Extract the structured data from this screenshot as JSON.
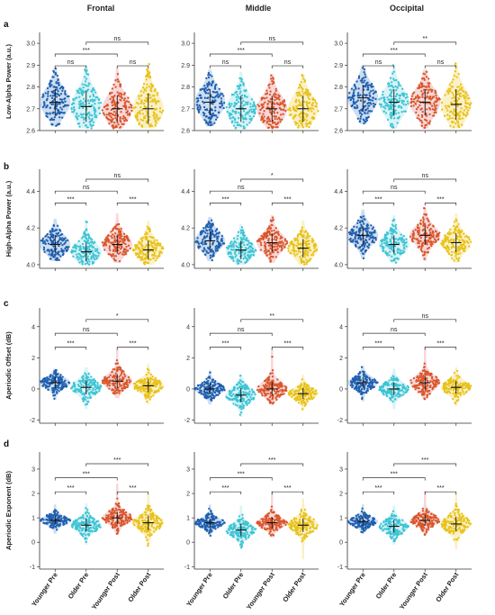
{
  "figure": {
    "col_titles": [
      "Frontal",
      "Middle",
      "Occipital"
    ],
    "categories": [
      "Younger Pre",
      "Older Pre",
      "Younger Post",
      "Older Post"
    ],
    "colors": [
      "#1f5fae",
      "#3cc4d4",
      "#d9562a",
      "#e8c21a"
    ],
    "violin_colors": [
      "#c9daf0",
      "#d6f2f5",
      "#f6d3d6",
      "#fbefc2"
    ]
  },
  "chart_data": [
    {
      "panel": "a",
      "type": "scatter",
      "ylabel": "Low-Alpha Power (a.u.)",
      "ylim": [
        2.6,
        3.05
      ],
      "yticks": [
        2.6,
        2.7,
        2.8,
        2.9,
        3.0
      ],
      "decimals": 1,
      "columns": [
        {
          "region": "Frontal",
          "stats": [
            {
              "mean": 2.73,
              "sd": 0.06,
              "lo": 2.62,
              "hi": 2.89
            },
            {
              "mean": 2.71,
              "sd": 0.07,
              "lo": 2.61,
              "hi": 2.9
            },
            {
              "mean": 2.7,
              "sd": 0.06,
              "lo": 2.61,
              "hi": 2.89
            },
            {
              "mean": 2.7,
              "sd": 0.07,
              "lo": 2.61,
              "hi": 2.91
            }
          ],
          "brackets": [
            {
              "from": 1,
              "to": 2,
              "label": "ns",
              "level": 0
            },
            {
              "from": 3,
              "to": 4,
              "label": "ns",
              "level": 0
            },
            {
              "from": 1,
              "to": 3,
              "label": "***",
              "level": 1
            },
            {
              "from": 2,
              "to": 4,
              "label": "ns",
              "level": 2
            }
          ]
        },
        {
          "region": "Middle",
          "stats": [
            {
              "mean": 2.73,
              "sd": 0.06,
              "lo": 2.62,
              "hi": 2.88
            },
            {
              "mean": 2.7,
              "sd": 0.06,
              "lo": 2.61,
              "hi": 2.87
            },
            {
              "mean": 2.7,
              "sd": 0.06,
              "lo": 2.61,
              "hi": 2.86
            },
            {
              "mean": 2.7,
              "sd": 0.06,
              "lo": 2.61,
              "hi": 2.86
            }
          ],
          "brackets": [
            {
              "from": 1,
              "to": 2,
              "label": "ns",
              "level": 0
            },
            {
              "from": 3,
              "to": 4,
              "label": "ns",
              "level": 0
            },
            {
              "from": 1,
              "to": 3,
              "label": "***",
              "level": 1
            },
            {
              "from": 2,
              "to": 4,
              "label": "ns",
              "level": 2
            }
          ]
        },
        {
          "region": "Occipital",
          "stats": [
            {
              "mean": 2.75,
              "sd": 0.06,
              "lo": 2.63,
              "hi": 2.9
            },
            {
              "mean": 2.73,
              "sd": 0.06,
              "lo": 2.61,
              "hi": 2.9
            },
            {
              "mean": 2.73,
              "sd": 0.06,
              "lo": 2.61,
              "hi": 2.88
            },
            {
              "mean": 2.72,
              "sd": 0.07,
              "lo": 2.61,
              "hi": 2.91
            }
          ],
          "brackets": [
            {
              "from": 1,
              "to": 2,
              "label": "ns",
              "level": 0
            },
            {
              "from": 3,
              "to": 4,
              "label": "ns",
              "level": 0
            },
            {
              "from": 1,
              "to": 3,
              "label": "***",
              "level": 1
            },
            {
              "from": 2,
              "to": 4,
              "label": "**",
              "level": 2
            }
          ]
        }
      ]
    },
    {
      "panel": "b",
      "type": "scatter",
      "ylabel": "High-Alpha Power (a.u.)",
      "ylim": [
        3.98,
        4.52
      ],
      "yticks": [
        4.0,
        4.2,
        4.4
      ],
      "decimals": 1,
      "columns": [
        {
          "region": "Frontal",
          "stats": [
            {
              "mean": 4.11,
              "sd": 0.05,
              "lo": 4.02,
              "hi": 4.25
            },
            {
              "mean": 4.07,
              "sd": 0.05,
              "lo": 4.0,
              "hi": 4.24
            },
            {
              "mean": 4.11,
              "sd": 0.05,
              "lo": 4.01,
              "hi": 4.28
            },
            {
              "mean": 4.08,
              "sd": 0.05,
              "lo": 4.0,
              "hi": 4.24
            }
          ],
          "brackets": [
            {
              "from": 1,
              "to": 2,
              "label": "***",
              "level": 0
            },
            {
              "from": 3,
              "to": 4,
              "label": "***",
              "level": 0
            },
            {
              "from": 1,
              "to": 3,
              "label": "ns",
              "level": 1
            },
            {
              "from": 2,
              "to": 4,
              "label": "ns",
              "level": 2
            }
          ]
        },
        {
          "region": "Middle",
          "stats": [
            {
              "mean": 4.13,
              "sd": 0.05,
              "lo": 4.02,
              "hi": 4.26
            },
            {
              "mean": 4.08,
              "sd": 0.05,
              "lo": 4.0,
              "hi": 4.22
            },
            {
              "mean": 4.12,
              "sd": 0.05,
              "lo": 4.01,
              "hi": 4.27
            },
            {
              "mean": 4.09,
              "sd": 0.05,
              "lo": 4.0,
              "hi": 4.24
            }
          ],
          "brackets": [
            {
              "from": 1,
              "to": 2,
              "label": "***",
              "level": 0
            },
            {
              "from": 3,
              "to": 4,
              "label": "***",
              "level": 0
            },
            {
              "from": 1,
              "to": 3,
              "label": "ns",
              "level": 1
            },
            {
              "from": 2,
              "to": 4,
              "label": "*",
              "level": 2
            }
          ]
        },
        {
          "region": "Occipital",
          "stats": [
            {
              "mean": 4.16,
              "sd": 0.05,
              "lo": 4.03,
              "hi": 4.3
            },
            {
              "mean": 4.11,
              "sd": 0.05,
              "lo": 4.01,
              "hi": 4.27
            },
            {
              "mean": 4.16,
              "sd": 0.05,
              "lo": 4.02,
              "hi": 4.31
            },
            {
              "mean": 4.12,
              "sd": 0.05,
              "lo": 4.01,
              "hi": 4.28
            }
          ],
          "brackets": [
            {
              "from": 1,
              "to": 2,
              "label": "***",
              "level": 0
            },
            {
              "from": 3,
              "to": 4,
              "label": "***",
              "level": 0
            },
            {
              "from": 1,
              "to": 3,
              "label": "ns",
              "level": 1
            },
            {
              "from": 2,
              "to": 4,
              "label": "ns",
              "level": 2
            }
          ]
        }
      ]
    },
    {
      "panel": "c",
      "type": "scatter",
      "ylabel": "Aperiodic Offset (dB)",
      "ylim": [
        -2.2,
        5.2
      ],
      "yticks": [
        -2,
        0,
        2,
        4
      ],
      "decimals": 0,
      "columns": [
        {
          "region": "Frontal",
          "stats": [
            {
              "mean": 0.4,
              "sd": 0.35,
              "lo": -0.7,
              "hi": 1.3
            },
            {
              "mean": 0.1,
              "sd": 0.45,
              "lo": -1.3,
              "hi": 1.4
            },
            {
              "mean": 0.5,
              "sd": 0.45,
              "lo": -0.6,
              "hi": 2.6
            },
            {
              "mean": 0.2,
              "sd": 0.4,
              "lo": -1.0,
              "hi": 1.6
            }
          ],
          "brackets": [
            {
              "from": 1,
              "to": 2,
              "label": "***",
              "level": 0
            },
            {
              "from": 3,
              "to": 4,
              "label": "***",
              "level": 0
            },
            {
              "from": 1,
              "to": 3,
              "label": "ns",
              "level": 1
            },
            {
              "from": 2,
              "to": 4,
              "label": "*",
              "level": 2
            }
          ]
        },
        {
          "region": "Middle",
          "stats": [
            {
              "mean": 0.0,
              "sd": 0.35,
              "lo": -1.0,
              "hi": 1.2
            },
            {
              "mean": -0.4,
              "sd": 0.45,
              "lo": -1.8,
              "hi": 0.9
            },
            {
              "mean": 0.0,
              "sd": 0.45,
              "lo": -1.0,
              "hi": 2.6
            },
            {
              "mean": -0.3,
              "sd": 0.35,
              "lo": -1.4,
              "hi": 0.9
            }
          ],
          "brackets": [
            {
              "from": 1,
              "to": 2,
              "label": "***",
              "level": 0
            },
            {
              "from": 3,
              "to": 4,
              "label": "***",
              "level": 0
            },
            {
              "from": 1,
              "to": 3,
              "label": "ns",
              "level": 1
            },
            {
              "from": 2,
              "to": 4,
              "label": "**",
              "level": 2
            }
          ]
        },
        {
          "region": "Occipital",
          "stats": [
            {
              "mean": 0.4,
              "sd": 0.35,
              "lo": -0.8,
              "hi": 1.5
            },
            {
              "mean": 0.0,
              "sd": 0.4,
              "lo": -1.3,
              "hi": 1.3
            },
            {
              "mean": 0.4,
              "sd": 0.45,
              "lo": -0.7,
              "hi": 2.7
            },
            {
              "mean": 0.1,
              "sd": 0.4,
              "lo": -1.1,
              "hi": 1.4
            }
          ],
          "brackets": [
            {
              "from": 1,
              "to": 2,
              "label": "***",
              "level": 0
            },
            {
              "from": 3,
              "to": 4,
              "label": "***",
              "level": 0
            },
            {
              "from": 1,
              "to": 3,
              "label": "ns",
              "level": 1
            },
            {
              "from": 2,
              "to": 4,
              "label": "ns",
              "level": 2
            }
          ]
        }
      ]
    },
    {
      "panel": "d",
      "type": "scatter",
      "ylabel": "Aperiodic Exponent (dB)",
      "ylim": [
        -1.1,
        3.7
      ],
      "yticks": [
        -1,
        0,
        1,
        2,
        3
      ],
      "decimals": 0,
      "columns": [
        {
          "region": "Frontal",
          "stats": [
            {
              "mean": 0.9,
              "sd": 0.18,
              "lo": 0.35,
              "hi": 1.55
            },
            {
              "mean": 0.7,
              "sd": 0.25,
              "lo": -0.1,
              "hi": 1.6
            },
            {
              "mean": 1.0,
              "sd": 0.25,
              "lo": 0.3,
              "hi": 2.4
            },
            {
              "mean": 0.8,
              "sd": 0.3,
              "lo": -0.2,
              "hi": 2.0
            }
          ],
          "brackets": [
            {
              "from": 1,
              "to": 2,
              "label": "***",
              "level": 0
            },
            {
              "from": 3,
              "to": 4,
              "label": "***",
              "level": 0
            },
            {
              "from": 1,
              "to": 3,
              "label": "***",
              "level": 1
            },
            {
              "from": 2,
              "to": 4,
              "label": "***",
              "level": 2
            }
          ]
        },
        {
          "region": "Middle",
          "stats": [
            {
              "mean": 0.8,
              "sd": 0.18,
              "lo": 0.25,
              "hi": 1.55
            },
            {
              "mean": 0.5,
              "sd": 0.25,
              "lo": -0.3,
              "hi": 1.5
            },
            {
              "mean": 0.8,
              "sd": 0.22,
              "lo": 0.2,
              "hi": 2.1
            },
            {
              "mean": 0.7,
              "sd": 0.28,
              "lo": -0.7,
              "hi": 1.8
            }
          ],
          "brackets": [
            {
              "from": 1,
              "to": 2,
              "label": "***",
              "level": 0
            },
            {
              "from": 3,
              "to": 4,
              "label": "***",
              "level": 0
            },
            {
              "from": 1,
              "to": 3,
              "label": "***",
              "level": 1
            },
            {
              "from": 2,
              "to": 4,
              "label": "***",
              "level": 2
            }
          ]
        },
        {
          "region": "Occipital",
          "stats": [
            {
              "mean": 0.85,
              "sd": 0.18,
              "lo": 0.35,
              "hi": 1.55
            },
            {
              "mean": 0.65,
              "sd": 0.25,
              "lo": -0.1,
              "hi": 1.5
            },
            {
              "mean": 0.9,
              "sd": 0.22,
              "lo": 0.25,
              "hi": 2.1
            },
            {
              "mean": 0.75,
              "sd": 0.3,
              "lo": -0.3,
              "hi": 2.0
            }
          ],
          "brackets": [
            {
              "from": 1,
              "to": 2,
              "label": "***",
              "level": 0
            },
            {
              "from": 3,
              "to": 4,
              "label": "***",
              "level": 0
            },
            {
              "from": 1,
              "to": 3,
              "label": "***",
              "level": 1
            },
            {
              "from": 2,
              "to": 4,
              "label": "***",
              "level": 2
            }
          ]
        }
      ]
    }
  ]
}
